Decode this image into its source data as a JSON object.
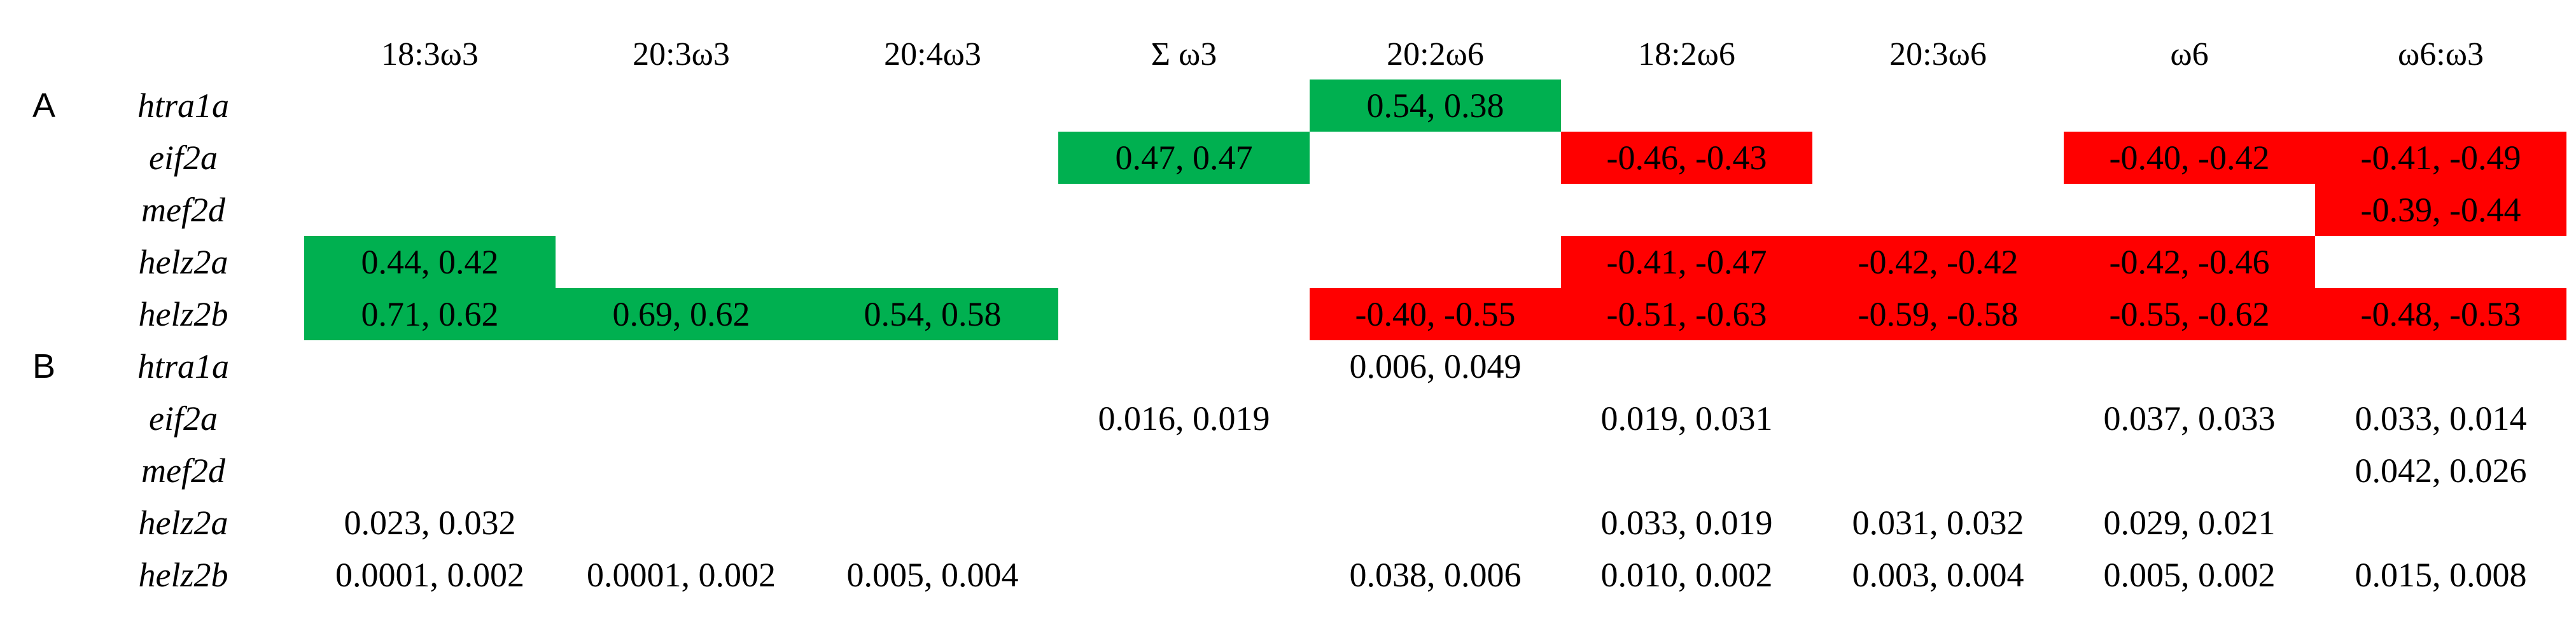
{
  "table": {
    "headers": [
      "18:3ω3",
      "20:3ω3",
      "20:4ω3",
      "Σ ω3",
      "20:2ω6",
      "18:2ω6",
      "20:3ω6",
      "ω6",
      "ω6:ω3"
    ],
    "sections": [
      {
        "label": "A",
        "rows": [
          {
            "gene": "htra1a",
            "cells": [
              {
                "text": "",
                "sign": ""
              },
              {
                "text": "",
                "sign": ""
              },
              {
                "text": "",
                "sign": ""
              },
              {
                "text": "",
                "sign": ""
              },
              {
                "text": "0.54, 0.38",
                "sign": "positive"
              },
              {
                "text": "",
                "sign": ""
              },
              {
                "text": "",
                "sign": ""
              },
              {
                "text": "",
                "sign": ""
              },
              {
                "text": "",
                "sign": ""
              }
            ]
          },
          {
            "gene": "eif2a",
            "cells": [
              {
                "text": "",
                "sign": ""
              },
              {
                "text": "",
                "sign": ""
              },
              {
                "text": "",
                "sign": ""
              },
              {
                "text": "0.47, 0.47",
                "sign": "positive"
              },
              {
                "text": "",
                "sign": ""
              },
              {
                "text": "-0.46, -0.43",
                "sign": "negative"
              },
              {
                "text": "",
                "sign": ""
              },
              {
                "text": "-0.40, -0.42",
                "sign": "negative"
              },
              {
                "text": "-0.41, -0.49",
                "sign": "negative"
              }
            ]
          },
          {
            "gene": "mef2d",
            "cells": [
              {
                "text": "",
                "sign": ""
              },
              {
                "text": "",
                "sign": ""
              },
              {
                "text": "",
                "sign": ""
              },
              {
                "text": "",
                "sign": ""
              },
              {
                "text": "",
                "sign": ""
              },
              {
                "text": "",
                "sign": ""
              },
              {
                "text": "",
                "sign": ""
              },
              {
                "text": "",
                "sign": ""
              },
              {
                "text": "-0.39, -0.44",
                "sign": "negative"
              }
            ]
          },
          {
            "gene": "helz2a",
            "cells": [
              {
                "text": "0.44, 0.42",
                "sign": "positive"
              },
              {
                "text": "",
                "sign": ""
              },
              {
                "text": "",
                "sign": ""
              },
              {
                "text": "",
                "sign": ""
              },
              {
                "text": "",
                "sign": ""
              },
              {
                "text": "-0.41, -0.47",
                "sign": "negative"
              },
              {
                "text": "-0.42, -0.42",
                "sign": "negative"
              },
              {
                "text": "-0.42, -0.46",
                "sign": "negative"
              },
              {
                "text": "",
                "sign": ""
              }
            ]
          },
          {
            "gene": "helz2b",
            "cells": [
              {
                "text": "0.71, 0.62",
                "sign": "positive"
              },
              {
                "text": "0.69, 0.62",
                "sign": "positive"
              },
              {
                "text": "0.54, 0.58",
                "sign": "positive"
              },
              {
                "text": "",
                "sign": ""
              },
              {
                "text": "-0.40, -0.55",
                "sign": "negative"
              },
              {
                "text": "-0.51, -0.63",
                "sign": "negative"
              },
              {
                "text": "-0.59, -0.58",
                "sign": "negative"
              },
              {
                "text": "-0.55, -0.62",
                "sign": "negative"
              },
              {
                "text": "-0.48, -0.53",
                "sign": "negative"
              }
            ]
          }
        ]
      },
      {
        "label": "B",
        "rows": [
          {
            "gene": "htra1a",
            "cells": [
              {
                "text": "",
                "sign": ""
              },
              {
                "text": "",
                "sign": ""
              },
              {
                "text": "",
                "sign": ""
              },
              {
                "text": "",
                "sign": ""
              },
              {
                "text": "0.006, 0.049",
                "sign": ""
              },
              {
                "text": "",
                "sign": ""
              },
              {
                "text": "",
                "sign": ""
              },
              {
                "text": "",
                "sign": ""
              },
              {
                "text": "",
                "sign": ""
              }
            ]
          },
          {
            "gene": "eif2a",
            "cells": [
              {
                "text": "",
                "sign": ""
              },
              {
                "text": "",
                "sign": ""
              },
              {
                "text": "",
                "sign": ""
              },
              {
                "text": "0.016, 0.019",
                "sign": ""
              },
              {
                "text": "",
                "sign": ""
              },
              {
                "text": "0.019, 0.031",
                "sign": ""
              },
              {
                "text": "",
                "sign": ""
              },
              {
                "text": "0.037, 0.033",
                "sign": ""
              },
              {
                "text": "0.033, 0.014",
                "sign": ""
              }
            ]
          },
          {
            "gene": "mef2d",
            "cells": [
              {
                "text": "",
                "sign": ""
              },
              {
                "text": "",
                "sign": ""
              },
              {
                "text": "",
                "sign": ""
              },
              {
                "text": "",
                "sign": ""
              },
              {
                "text": "",
                "sign": ""
              },
              {
                "text": "",
                "sign": ""
              },
              {
                "text": "",
                "sign": ""
              },
              {
                "text": "",
                "sign": ""
              },
              {
                "text": "0.042, 0.026",
                "sign": ""
              }
            ]
          },
          {
            "gene": "helz2a",
            "cells": [
              {
                "text": "0.023, 0.032",
                "sign": ""
              },
              {
                "text": "",
                "sign": ""
              },
              {
                "text": "",
                "sign": ""
              },
              {
                "text": "",
                "sign": ""
              },
              {
                "text": "",
                "sign": ""
              },
              {
                "text": "0.033, 0.019",
                "sign": ""
              },
              {
                "text": "0.031, 0.032",
                "sign": ""
              },
              {
                "text": "0.029, 0.021",
                "sign": ""
              },
              {
                "text": "",
                "sign": ""
              }
            ]
          },
          {
            "gene": "helz2b",
            "cells": [
              {
                "text": "0.0001, 0.002",
                "sign": ""
              },
              {
                "text": "0.0001, 0.002",
                "sign": ""
              },
              {
                "text": "0.005, 0.004",
                "sign": ""
              },
              {
                "text": "",
                "sign": ""
              },
              {
                "text": "0.038, 0.006",
                "sign": ""
              },
              {
                "text": "0.010, 0.002",
                "sign": ""
              },
              {
                "text": "0.003, 0.004",
                "sign": ""
              },
              {
                "text": "0.005, 0.002",
                "sign": ""
              },
              {
                "text": "0.015, 0.008",
                "sign": ""
              }
            ]
          }
        ]
      }
    ],
    "colors": {
      "positive": "#00b050",
      "negative": "#ff0000"
    }
  }
}
